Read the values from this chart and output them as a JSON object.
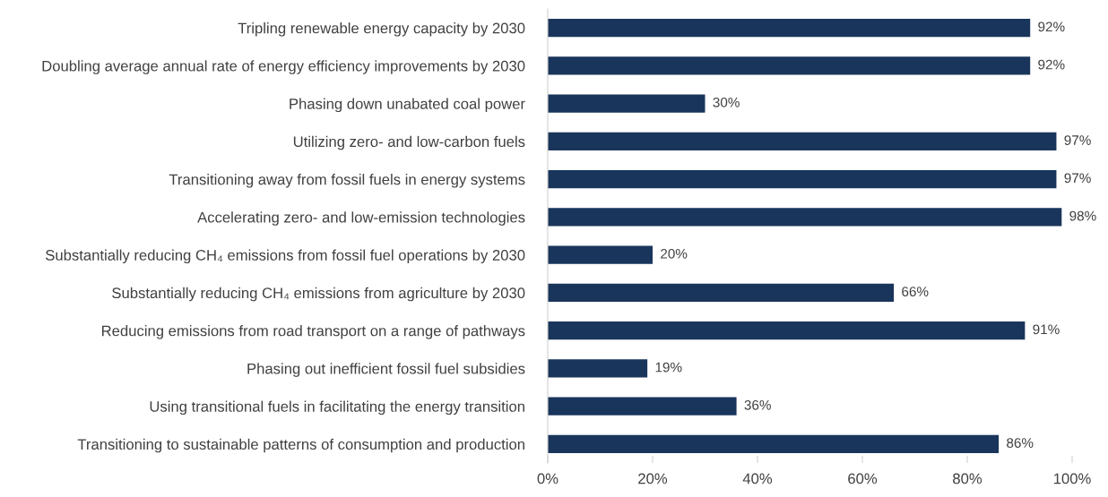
{
  "chart_data": {
    "type": "bar",
    "orientation": "horizontal",
    "categories": [
      "Tripling renewable energy capacity by 2030",
      "Doubling average annual rate of energy efficiency improvements by 2030",
      "Phasing down unabated coal power",
      "Utilizing zero- and low-carbon fuels",
      "Transitioning away from fossil fuels in energy systems",
      "Accelerating zero- and low-emission technologies",
      "Substantially reducing CH₄ emissions from fossil fuel operations by 2030",
      "Substantially reducing CH₄ emissions from agriculture by 2030",
      "Reducing emissions from road transport on a range of pathways",
      "Phasing out inefficient fossil fuel subsidies",
      "Using transitional fuels in facilitating the energy transition",
      "Transitioning to sustainable patterns of consumption and production"
    ],
    "values": [
      92,
      92,
      30,
      97,
      97,
      98,
      20,
      66,
      91,
      19,
      36,
      86
    ],
    "value_labels": [
      "92%",
      "92%",
      "30%",
      "97%",
      "97%",
      "98%",
      "20%",
      "66%",
      "91%",
      "19%",
      "36%",
      "86%"
    ],
    "color": "#1a355b",
    "xlim": [
      0,
      100
    ],
    "xticks": [
      {
        "value": 0,
        "label": "0%"
      },
      {
        "value": 20,
        "label": "20%"
      },
      {
        "value": 40,
        "label": "40%"
      },
      {
        "value": 60,
        "label": "60%"
      },
      {
        "value": 80,
        "label": "80%"
      },
      {
        "value": 100,
        "label": "100%"
      }
    ],
    "grid": false
  }
}
